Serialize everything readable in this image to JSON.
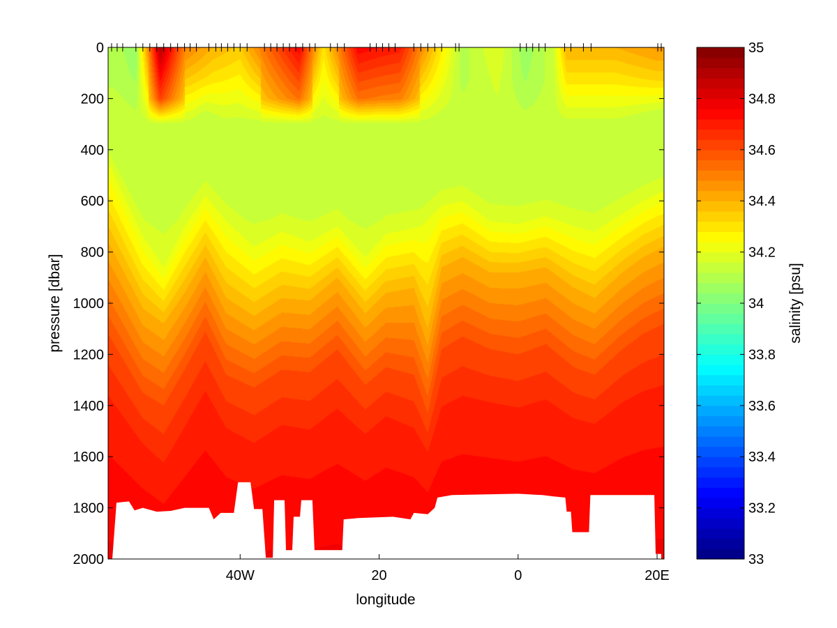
{
  "chart_data": {
    "type": "heatmap",
    "title": "",
    "xlabel": "longitude",
    "ylabel": "pressure [dbar]",
    "colorbar_label": "salinity [psu]",
    "xlim": [
      -59,
      21
    ],
    "ylim": [
      0,
      2000
    ],
    "y_reversed": true,
    "x_ticks": [
      {
        "value": -40,
        "label": "40W"
      },
      {
        "value": -20,
        "label": "20"
      },
      {
        "value": 0,
        "label": "0"
      },
      {
        "value": 20,
        "label": "20E"
      }
    ],
    "y_ticks": [
      0,
      200,
      400,
      600,
      800,
      1000,
      1200,
      1400,
      1600,
      1800,
      2000
    ],
    "colorbar_range": [
      33,
      35
    ],
    "colorbar_ticks": [
      33,
      33.2,
      33.4,
      33.6,
      33.8,
      34,
      34.2,
      34.4,
      34.6,
      34.8,
      35
    ],
    "colormap": "jet",
    "color_levels": 50,
    "station_longitudes": [
      -58.5,
      -57.7,
      -56.9,
      -55,
      -54,
      -53,
      -52,
      -51,
      -50,
      -49,
      -48,
      -47.2,
      -46.3,
      -44.5,
      -43.5,
      -42.7,
      -41.8,
      -40.9,
      -40,
      -39,
      -36.5,
      -35.6,
      -34.7,
      -33.8,
      -32.9,
      -32,
      -31,
      -30,
      -29.2,
      -27,
      -26,
      -25,
      -21.3,
      -20.4,
      -19.5,
      -18.6,
      -17.7,
      -15,
      -14,
      -13,
      -12,
      -11,
      -9,
      -8.5,
      0.3,
      1.2,
      2.1,
      3,
      3.9,
      6.7,
      7.6,
      9.4,
      10.5,
      20.1,
      20.6
    ],
    "surface_salinity": [
      {
        "lon": -58,
        "value": 34.1
      },
      {
        "lon": -55,
        "value": 34.05
      },
      {
        "lon": -51.5,
        "value": 34.9
      },
      {
        "lon": -48,
        "value": 34.5
      },
      {
        "lon": -44,
        "value": 34.4
      },
      {
        "lon": -40,
        "value": 34.35
      },
      {
        "lon": -36,
        "value": 34.55
      },
      {
        "lon": -31.5,
        "value": 34.75
      },
      {
        "lon": -28,
        "value": 34.3
      },
      {
        "lon": -23,
        "value": 34.75
      },
      {
        "lon": -20,
        "value": 34.72
      },
      {
        "lon": -17,
        "value": 34.7
      },
      {
        "lon": -12,
        "value": 34.35
      },
      {
        "lon": -8,
        "value": 34.1
      },
      {
        "lon": -3,
        "value": 34.2
      },
      {
        "lon": 1,
        "value": 34.05
      },
      {
        "lon": 5,
        "value": 34.15
      },
      {
        "lon": 7,
        "value": 34.4
      },
      {
        "lon": 14,
        "value": 34.4
      },
      {
        "lon": 20,
        "value": 34.45
      }
    ],
    "salinity_minimum_layer": {
      "depth_range": [
        300,
        600
      ],
      "value": 34.12
    },
    "isohaline_depths": [
      {
        "salinity": 34.2,
        "points": [
          [
            -59,
            450
          ],
          [
            -54,
            740
          ],
          [
            -51,
            860
          ],
          [
            -48,
            700
          ],
          [
            -45,
            580
          ],
          [
            -42,
            680
          ],
          [
            -38,
            780
          ],
          [
            -34,
            720
          ],
          [
            -30,
            760
          ],
          [
            -26,
            700
          ],
          [
            -22,
            820
          ],
          [
            -19,
            730
          ],
          [
            -14,
            700
          ],
          [
            -11,
            620
          ],
          [
            -8,
            600
          ],
          [
            -4,
            680
          ],
          [
            0,
            690
          ],
          [
            4,
            660
          ],
          [
            8,
            700
          ],
          [
            11,
            720
          ],
          [
            15,
            650
          ],
          [
            18,
            600
          ],
          [
            21,
            560
          ]
        ]
      },
      {
        "salinity": 34.4,
        "points": [
          [
            -59,
            760
          ],
          [
            -54,
            1020
          ],
          [
            -51,
            1080
          ],
          [
            -48,
            960
          ],
          [
            -45,
            820
          ],
          [
            -42,
            980
          ],
          [
            -38,
            1050
          ],
          [
            -34,
            980
          ],
          [
            -30,
            990
          ],
          [
            -26,
            900
          ],
          [
            -22,
            1040
          ],
          [
            -19,
            960
          ],
          [
            -15,
            940
          ],
          [
            -13,
            1100
          ],
          [
            -11,
            860
          ],
          [
            -8,
            820
          ],
          [
            -4,
            880
          ],
          [
            0,
            880
          ],
          [
            4,
            860
          ],
          [
            8,
            940
          ],
          [
            11,
            980
          ],
          [
            15,
            880
          ],
          [
            18,
            820
          ],
          [
            21,
            780
          ]
        ]
      },
      {
        "salinity": 34.6,
        "points": [
          [
            -59,
            1120
          ],
          [
            -54,
            1350
          ],
          [
            -51,
            1400
          ],
          [
            -48,
            1260
          ],
          [
            -45,
            1110
          ],
          [
            -42,
            1280
          ],
          [
            -38,
            1330
          ],
          [
            -34,
            1260
          ],
          [
            -30,
            1270
          ],
          [
            -26,
            1180
          ],
          [
            -22,
            1320
          ],
          [
            -19,
            1250
          ],
          [
            -15,
            1280
          ],
          [
            -13,
            1430
          ],
          [
            -11,
            1180
          ],
          [
            -8,
            1130
          ],
          [
            -4,
            1180
          ],
          [
            0,
            1200
          ],
          [
            4,
            1160
          ],
          [
            8,
            1250
          ],
          [
            11,
            1280
          ],
          [
            15,
            1180
          ],
          [
            18,
            1120
          ],
          [
            21,
            1080
          ]
        ]
      },
      {
        "salinity": 34.7,
        "points": [
          [
            -59,
            1420
          ],
          [
            -54,
            1600
          ],
          [
            -51,
            1680
          ],
          [
            -48,
            1540
          ],
          [
            -45,
            1400
          ],
          [
            -42,
            1540
          ],
          [
            -38,
            1600
          ],
          [
            -34,
            1530
          ],
          [
            -30,
            1550
          ],
          [
            -26,
            1470
          ],
          [
            -22,
            1560
          ],
          [
            -19,
            1490
          ],
          [
            -15,
            1540
          ],
          [
            -13,
            1620
          ],
          [
            -11,
            1460
          ],
          [
            -8,
            1420
          ],
          [
            -4,
            1440
          ],
          [
            0,
            1460
          ],
          [
            4,
            1430
          ],
          [
            8,
            1500
          ],
          [
            11,
            1520
          ],
          [
            15,
            1440
          ],
          [
            18,
            1400
          ],
          [
            21,
            1380
          ]
        ]
      }
    ],
    "bottom_depth": [
      [
        -58.4,
        2000
      ],
      [
        -57.8,
        1780
      ],
      [
        -56,
        1775
      ],
      [
        -55.2,
        1810
      ],
      [
        -54,
        1800
      ],
      [
        -52,
        1815
      ],
      [
        -50,
        1812
      ],
      [
        -48,
        1800
      ],
      [
        -44.5,
        1800
      ],
      [
        -43.8,
        1845
      ],
      [
        -42.8,
        1820
      ],
      [
        -40.9,
        1820
      ],
      [
        -40.3,
        1700
      ],
      [
        -38.5,
        1700
      ],
      [
        -38,
        1805
      ],
      [
        -36.8,
        1805
      ],
      [
        -36.3,
        1995
      ],
      [
        -35.3,
        1995
      ],
      [
        -35.1,
        1770
      ],
      [
        -33.6,
        1770
      ],
      [
        -33.4,
        1965
      ],
      [
        -32.5,
        1965
      ],
      [
        -32.3,
        1835
      ],
      [
        -31.4,
        1835
      ],
      [
        -31.2,
        1770
      ],
      [
        -29.6,
        1770
      ],
      [
        -29.3,
        1965
      ],
      [
        -25.3,
        1965
      ],
      [
        -25.1,
        1845
      ],
      [
        -23,
        1840
      ],
      [
        -18,
        1835
      ],
      [
        -15.5,
        1845
      ],
      [
        -15,
        1820
      ],
      [
        -13,
        1825
      ],
      [
        -12,
        1800
      ],
      [
        -11.6,
        1760
      ],
      [
        -9.5,
        1750
      ],
      [
        0,
        1745
      ],
      [
        3.5,
        1750
      ],
      [
        5,
        1755
      ],
      [
        6.8,
        1760
      ],
      [
        7,
        1815
      ],
      [
        7.6,
        1815
      ],
      [
        7.8,
        1895
      ],
      [
        10.2,
        1895
      ],
      [
        10.4,
        1750
      ],
      [
        19.6,
        1750
      ],
      [
        19.8,
        1980
      ],
      [
        20.6,
        1980
      ]
    ]
  }
}
